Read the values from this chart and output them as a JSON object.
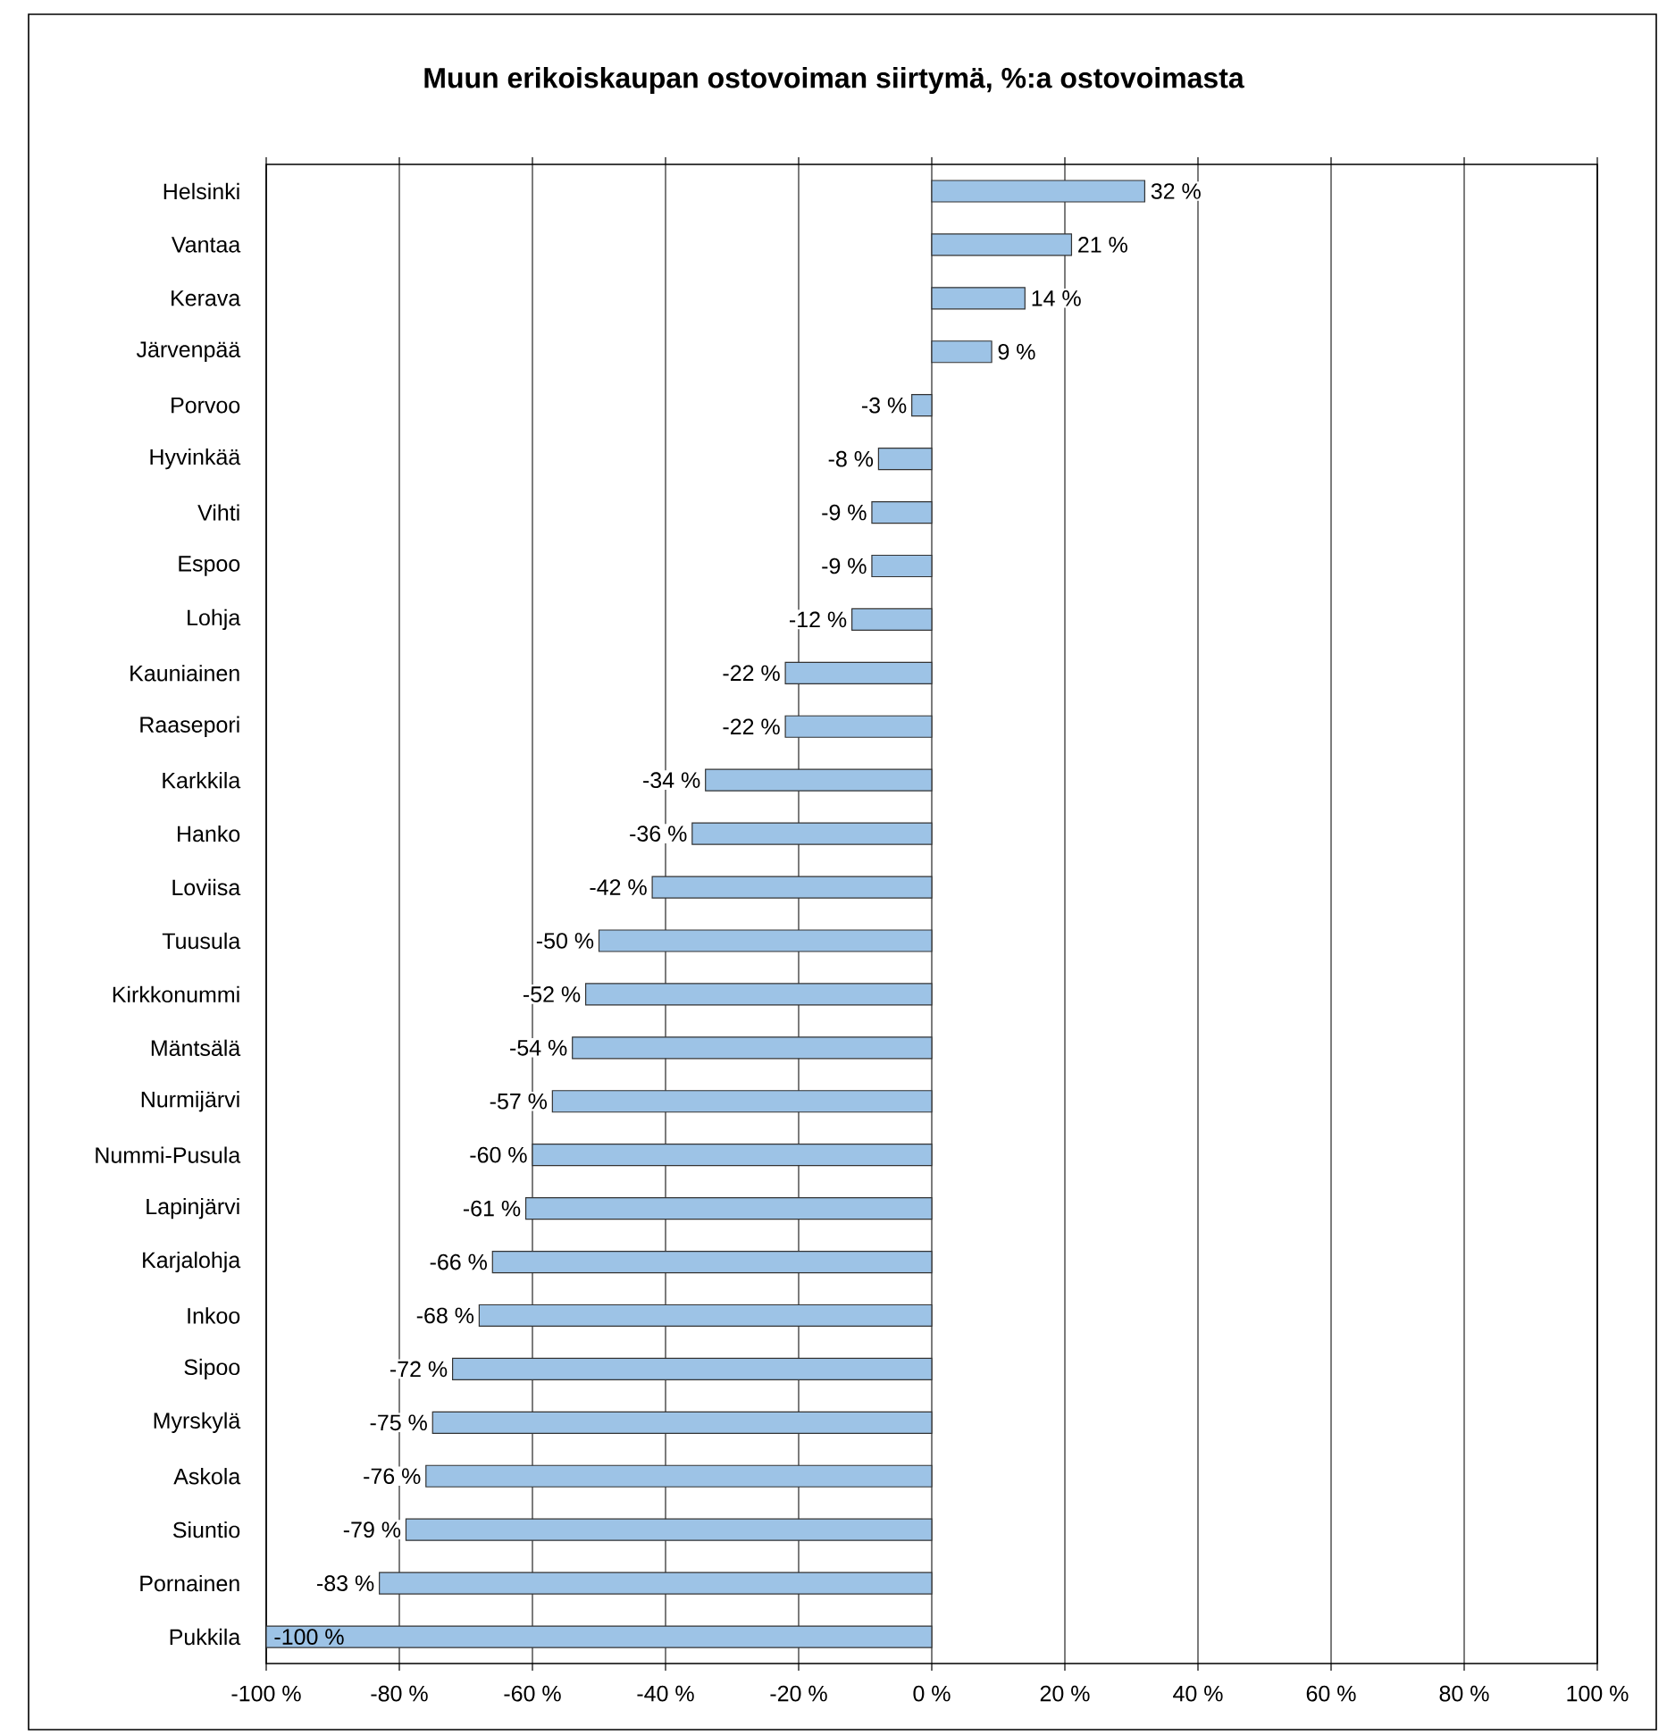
{
  "chart_data": {
    "type": "bar",
    "orientation": "horizontal",
    "title": "Muun erikoiskaupan ostovoiman siirtymä, %:a ostovoimasta",
    "categories": [
      "Helsinki",
      "Vantaa",
      "Kerava",
      "Järvenpää",
      "Porvoo",
      "Hyvinkää",
      "Vihti",
      "Espoo",
      "Lohja",
      "Kauniainen",
      "Raasepori",
      "Karkkila",
      "Hanko",
      "Loviisa",
      "Tuusula",
      "Kirkkonummi",
      "Mäntsälä",
      "Nurmijärvi",
      "Nummi-Pusula",
      "Lapinjärvi",
      "Karjalohja",
      "Inkoo",
      "Sipoo",
      "Myrskylä",
      "Askola",
      "Siuntio",
      "Pornainen",
      "Pukkila"
    ],
    "values": [
      32,
      21,
      14,
      9,
      -3,
      -8,
      -9,
      -9,
      -12,
      -22,
      -22,
      -34,
      -36,
      -42,
      -50,
      -52,
      -54,
      -57,
      -60,
      -61,
      -66,
      -68,
      -72,
      -75,
      -76,
      -79,
      -83,
      -100
    ],
    "value_labels": [
      "32 %",
      "21 %",
      "14 %",
      "9 %",
      "-3 %",
      "-8 %",
      "-9 %",
      "-9 %",
      "-12 %",
      "-22 %",
      "-22 %",
      "-34 %",
      "-36 %",
      "-42 %",
      "-50 %",
      "-52 %",
      "-54 %",
      "-57 %",
      "-60 %",
      "-61 %",
      "-66 %",
      "-68 %",
      "-72 %",
      "-75 %",
      "-76 %",
      "-79 %",
      "-83 %",
      "-100 %"
    ],
    "color": "#9dc3e6",
    "xlim": [
      -100,
      100
    ],
    "xticks": [
      {
        "value": -100,
        "label": "-100 %"
      },
      {
        "value": -80,
        "label": "-80 %"
      },
      {
        "value": -60,
        "label": "-60 %"
      },
      {
        "value": -40,
        "label": "-40 %"
      },
      {
        "value": -20,
        "label": "-20 %"
      },
      {
        "value": 0,
        "label": "0 %"
      },
      {
        "value": 20,
        "label": "20 %"
      },
      {
        "value": 40,
        "label": "40 %"
      },
      {
        "value": 60,
        "label": "60 %"
      },
      {
        "value": 80,
        "label": "80 %"
      },
      {
        "value": 100,
        "label": "100 %"
      }
    ],
    "grid": "x"
  }
}
